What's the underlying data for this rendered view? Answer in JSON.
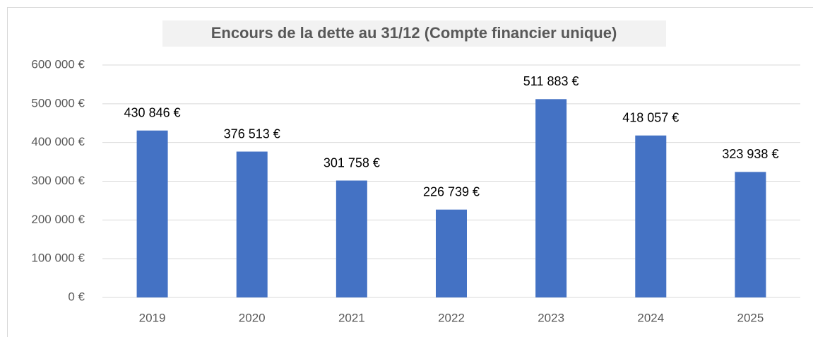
{
  "chart_data": {
    "type": "bar",
    "title": "Encours de la dette au 31/12 (Compte financier unique)",
    "categories": [
      "2019",
      "2020",
      "2021",
      "2022",
      "2023",
      "2024",
      "2025"
    ],
    "values": [
      430846,
      376513,
      301758,
      226739,
      511883,
      418057,
      323938
    ],
    "value_labels": [
      "430 846 €",
      "376 513 €",
      "301 758 €",
      "226 739 €",
      "511 883 €",
      "418 057 €",
      "323 938 €"
    ],
    "color": "#4472c4",
    "ylim": [
      0,
      600000
    ],
    "yticks": [
      {
        "value": 0,
        "label": "0 €"
      },
      {
        "value": 100000,
        "label": "100 000 €"
      },
      {
        "value": 200000,
        "label": "200 000 €"
      },
      {
        "value": 300000,
        "label": "300 000 €"
      },
      {
        "value": 400000,
        "label": "400 000 €"
      },
      {
        "value": 500000,
        "label": "500 000 €"
      },
      {
        "value": 600000,
        "label": "600 000 €"
      }
    ],
    "grid": true
  }
}
